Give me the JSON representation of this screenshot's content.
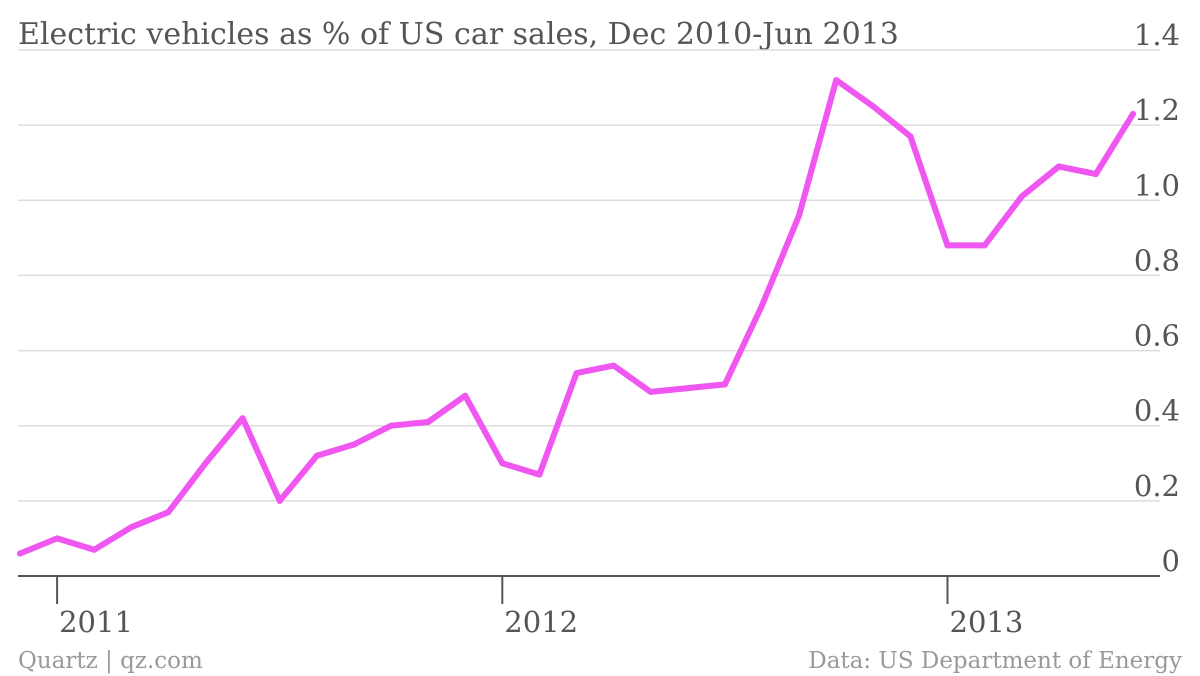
{
  "chart_data": {
    "type": "line",
    "title": "Electric vehicles as % of US car sales, Dec 2010-Jun 2013",
    "xlabel": "",
    "ylabel": "",
    "x_tick_labels": [
      "2011",
      "2012",
      "2013"
    ],
    "y_tick_labels": [
      "0",
      "0.2",
      "0.4",
      "0.6",
      "0.8",
      "1.0",
      "1.2",
      "1.4"
    ],
    "ylim": [
      0,
      1.4
    ],
    "grid": true,
    "y_axis_side": "right",
    "series": [
      {
        "color": "#f056f0",
        "points": [
          {
            "x": "2010-12",
            "y": 0.06
          },
          {
            "x": "2011-01",
            "y": 0.1
          },
          {
            "x": "2011-02",
            "y": 0.07
          },
          {
            "x": "2011-03",
            "y": 0.13
          },
          {
            "x": "2011-04",
            "y": 0.17
          },
          {
            "x": "2011-05",
            "y": 0.3
          },
          {
            "x": "2011-06",
            "y": 0.42
          },
          {
            "x": "2011-07",
            "y": 0.2
          },
          {
            "x": "2011-08",
            "y": 0.32
          },
          {
            "x": "2011-09",
            "y": 0.35
          },
          {
            "x": "2011-10",
            "y": 0.4
          },
          {
            "x": "2011-11",
            "y": 0.41
          },
          {
            "x": "2011-12",
            "y": 0.48
          },
          {
            "x": "2012-01",
            "y": 0.3
          },
          {
            "x": "2012-02",
            "y": 0.27
          },
          {
            "x": "2012-03",
            "y": 0.54
          },
          {
            "x": "2012-04",
            "y": 0.56
          },
          {
            "x": "2012-05",
            "y": 0.49
          },
          {
            "x": "2012-06",
            "y": 0.5
          },
          {
            "x": "2012-07",
            "y": 0.51
          },
          {
            "x": "2012-08",
            "y": 0.72
          },
          {
            "x": "2012-09",
            "y": 0.96
          },
          {
            "x": "2012-10",
            "y": 1.32
          },
          {
            "x": "2012-11",
            "y": 1.25
          },
          {
            "x": "2012-12",
            "y": 1.17
          },
          {
            "x": "2013-01",
            "y": 0.88
          },
          {
            "x": "2013-02",
            "y": 0.88
          },
          {
            "x": "2013-03",
            "y": 1.01
          },
          {
            "x": "2013-04",
            "y": 1.09
          },
          {
            "x": "2013-05",
            "y": 1.07
          },
          {
            "x": "2013-06",
            "y": 1.23
          }
        ]
      }
    ]
  },
  "footer": {
    "source_left": "Quartz | qz.com",
    "source_right": "Data: US Department of Energy"
  },
  "colors": {
    "line": "#f056f0",
    "text": "#555555",
    "footer_text": "#999999",
    "grid": "#dddddd"
  }
}
